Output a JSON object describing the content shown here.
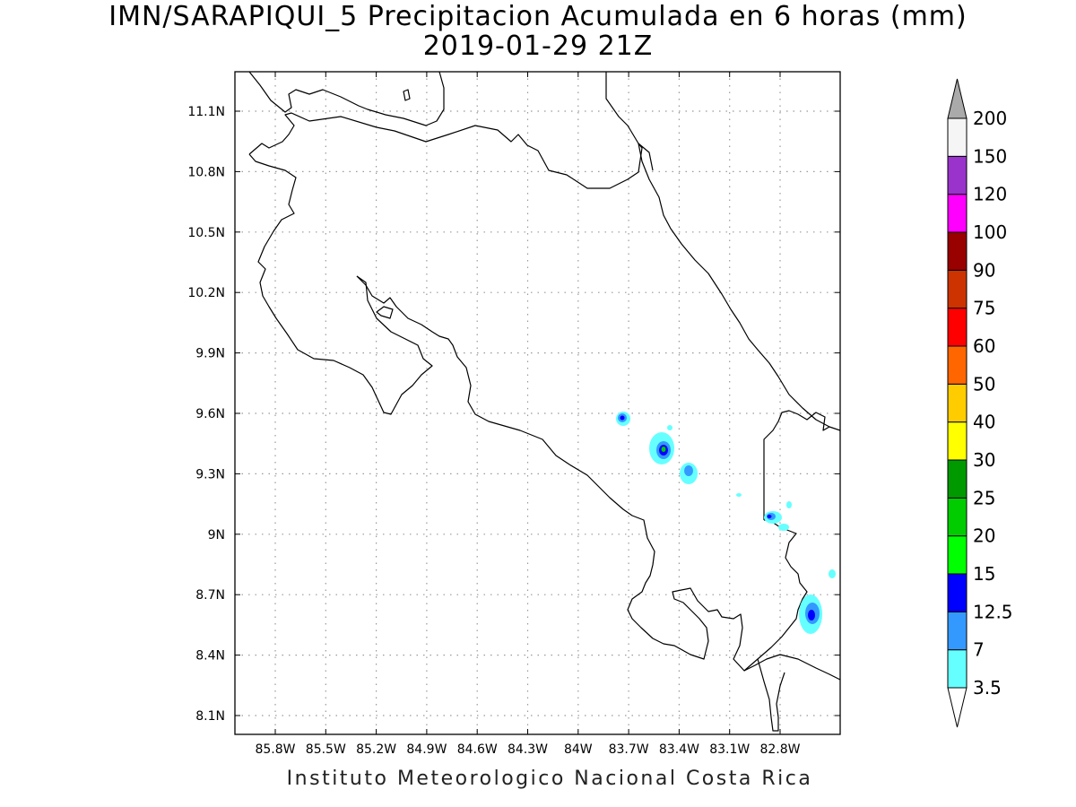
{
  "title": {
    "line1": "IMN/SARAPIQUI_5 Precipitacion Acumulada en 6 horas (mm)",
    "line2": "2019-01-29 21Z"
  },
  "credit": "Instituto Meteorologico Nacional Costa Rica",
  "lon_ticks": [
    "85.8W",
    "85.5W",
    "85.2W",
    "84.9W",
    "84.6W",
    "84.3W",
    "84W",
    "83.7W",
    "83.4W",
    "83.1W",
    "82.8W"
  ],
  "lat_ticks": [
    "11.1N",
    "10.8N",
    "10.5N",
    "10.2N",
    "9.9N",
    "9.6N",
    "9.3N",
    "9N",
    "8.7N",
    "8.4N",
    "8.1N"
  ],
  "colorbar": {
    "labels": [
      "3.5",
      "7",
      "12.5",
      "15",
      "20",
      "25",
      "30",
      "40",
      "50",
      "60",
      "75",
      "90",
      "100",
      "120",
      "150",
      "200"
    ],
    "colors": [
      "#66ffff",
      "#3399ff",
      "#0000ff",
      "#00ff00",
      "#00cc00",
      "#009900",
      "#ffff00",
      "#ffcc00",
      "#ff6600",
      "#ff0000",
      "#cc3300",
      "#990000",
      "#ff00ff",
      "#9933cc",
      "#f5f5f5"
    ],
    "under_color": "#ffffff",
    "over_color": "#aaaaaa"
  }
}
